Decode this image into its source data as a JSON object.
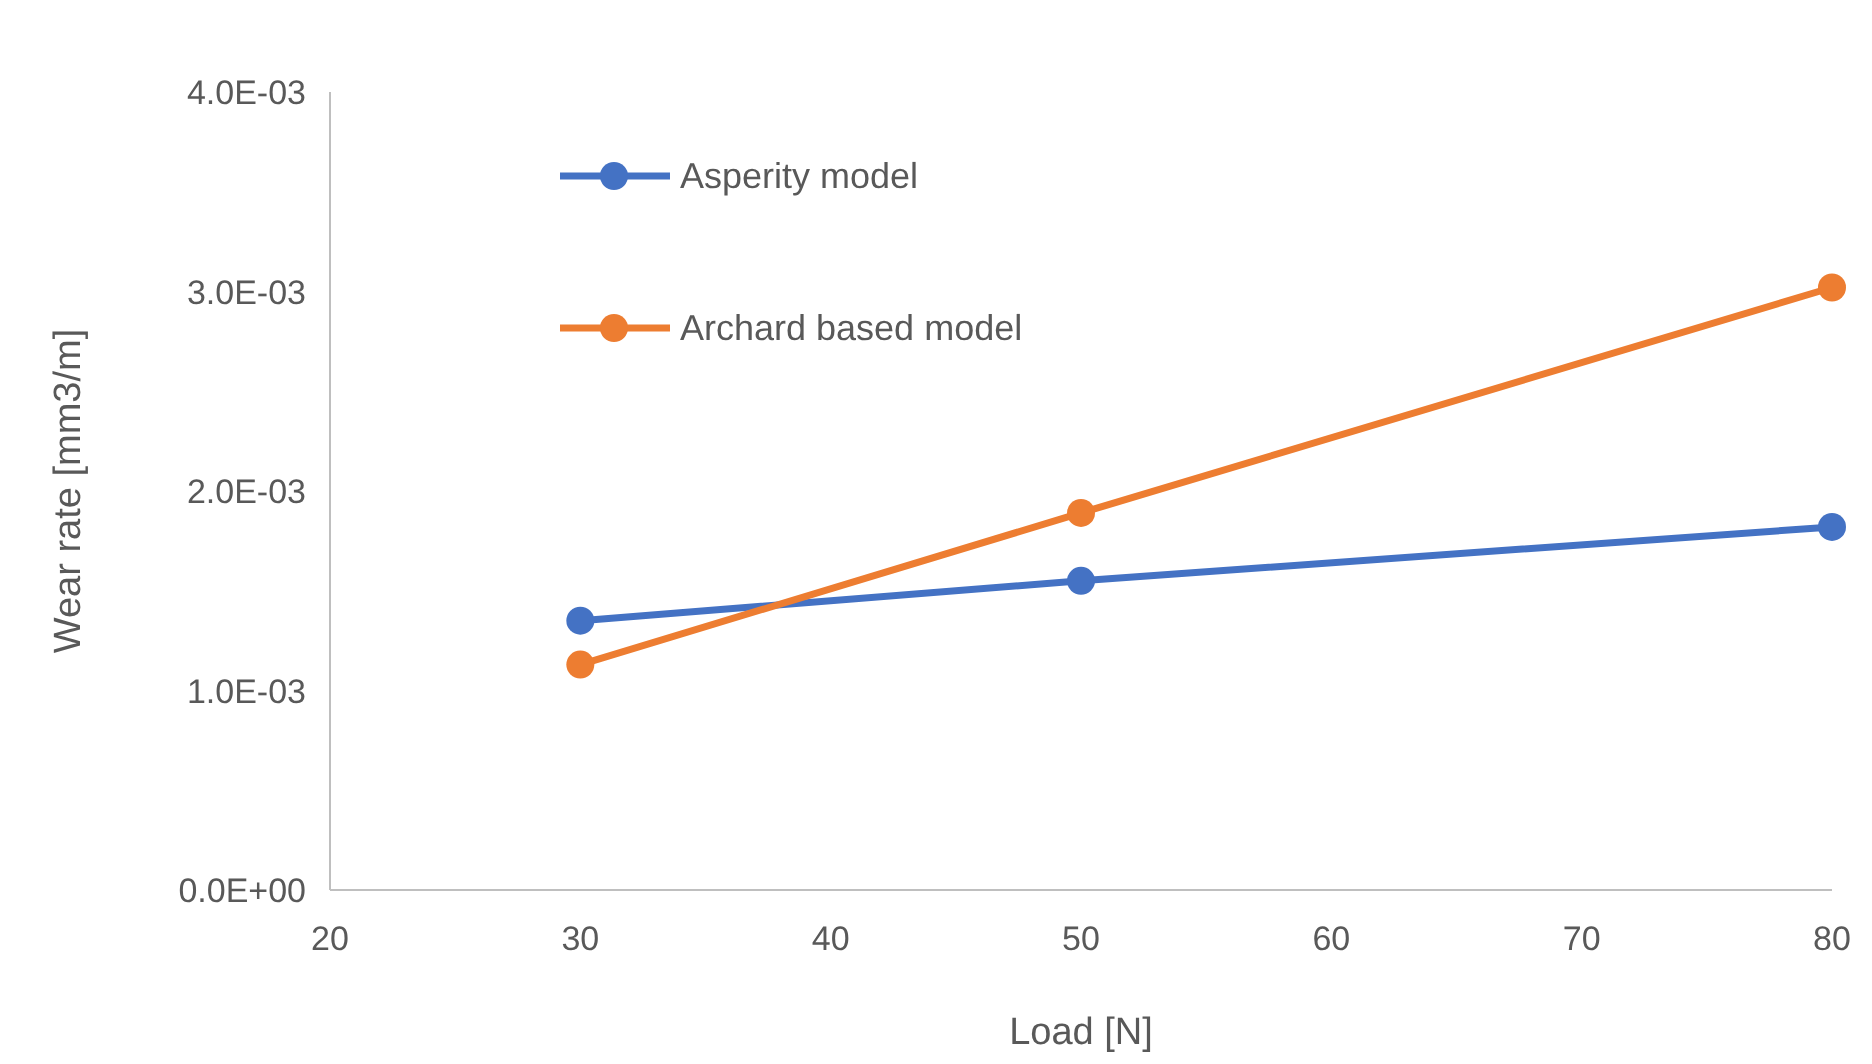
{
  "chart_data": {
    "type": "line",
    "xlabel": "Load [N]",
    "ylabel": "Wear rate [mm3/m]",
    "xlim": [
      20,
      80
    ],
    "xticks": [
      20,
      30,
      40,
      50,
      60,
      70,
      80
    ],
    "ylim": [
      0,
      0.004
    ],
    "yticks": [
      {
        "value": 0,
        "label": "0.0E+00"
      },
      {
        "value": 0.001,
        "label": "1.0E-03"
      },
      {
        "value": 0.002,
        "label": "2.0E-03"
      },
      {
        "value": 0.003,
        "label": "3.0E-03"
      },
      {
        "value": 0.004,
        "label": "4.0E-03"
      }
    ],
    "x": [
      30,
      50,
      80
    ],
    "series": [
      {
        "name": "Asperity model",
        "color": "#4472c4",
        "values": [
          0.00135,
          0.00155,
          0.00182
        ]
      },
      {
        "name": "Archard based model",
        "color": "#ed7d31",
        "values": [
          0.00113,
          0.00189,
          0.00302
        ]
      }
    ],
    "marker": "circle",
    "line_style": "solid",
    "grid": false,
    "legend": "top left"
  }
}
